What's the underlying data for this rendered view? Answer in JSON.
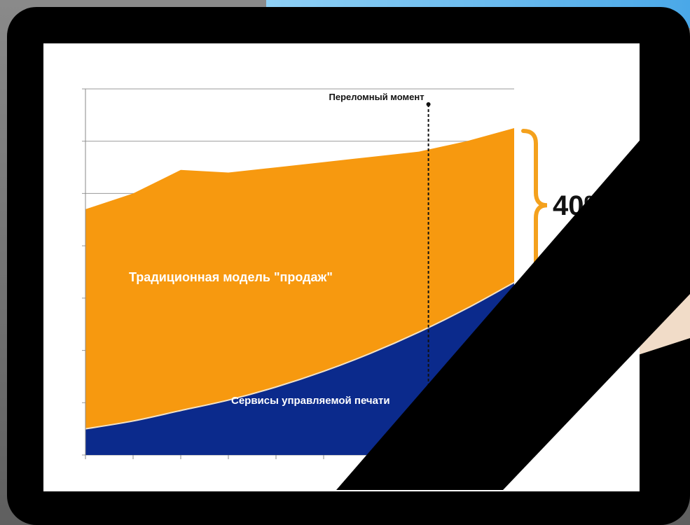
{
  "chart_data": {
    "type": "area",
    "annotations": {
      "turning_point": "Переломный момент",
      "traditional": "Традиционная модель \"продаж\"",
      "mps": "Сервисы управляемой печати",
      "percent": "40%"
    },
    "x": [
      0,
      1,
      2,
      3,
      4,
      5,
      6,
      7,
      8,
      9
    ],
    "turning_point_x": 7.2,
    "ylim": [
      0,
      7
    ],
    "series": [
      {
        "values": [
          0.5,
          0.65,
          0.85,
          1.05,
          1.3,
          1.6,
          1.95,
          2.35,
          2.8,
          3.3
        ]
      },
      {
        "values": [
          4.7,
          5.0,
          5.45,
          5.4,
          5.5,
          5.6,
          5.7,
          5.8,
          6.0,
          6.25
        ]
      }
    ],
    "colors": {
      "orange": "#f7990f",
      "blue": "#0b2a8c",
      "brace": "#f4a11d",
      "grid": "#999999"
    },
    "grid": true
  }
}
